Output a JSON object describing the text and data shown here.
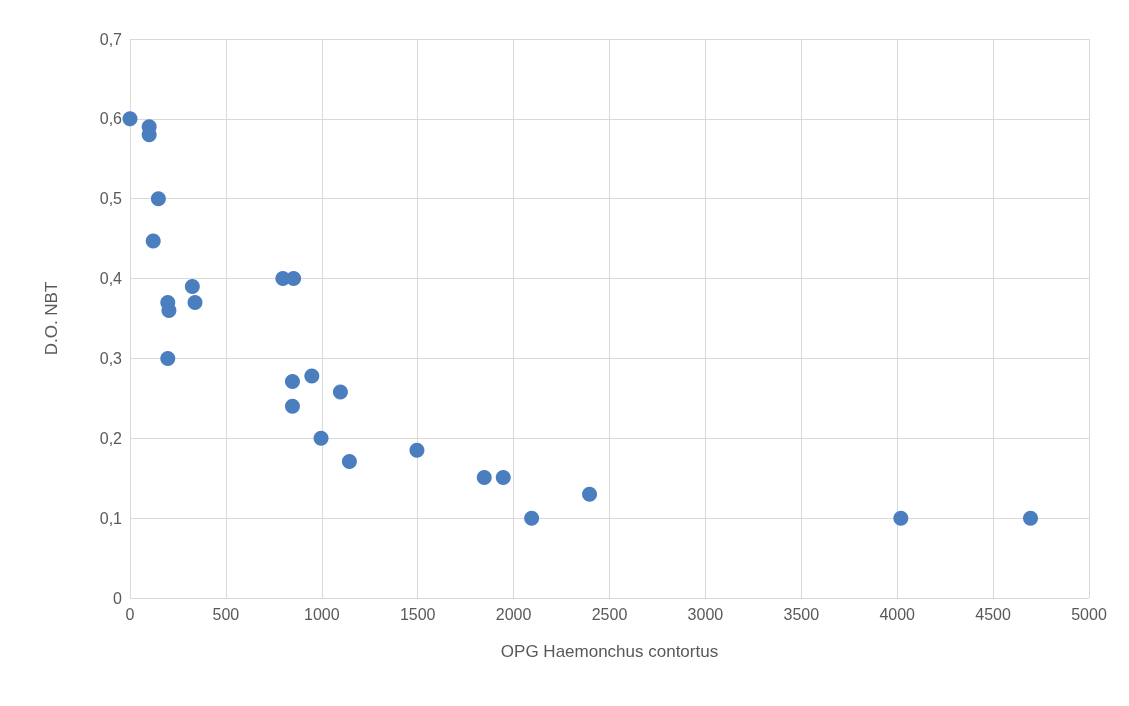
{
  "chart_data": {
    "type": "scatter",
    "xlabel": "OPG Haemonchus contortus",
    "ylabel": "D.O. NBT",
    "x": [
      0,
      100,
      100,
      148,
      121,
      197,
      203,
      197,
      325,
      339,
      797,
      853,
      847,
      948,
      847,
      1097,
      996,
      1144,
      1496,
      1847,
      1946,
      2094,
      2396,
      4019,
      4695
    ],
    "series": [
      {
        "color": "#4a7ebf",
        "values": [
          0.6,
          0.59,
          0.58,
          0.5,
          0.447,
          0.37,
          0.36,
          0.3,
          0.39,
          0.37,
          0.4,
          0.4,
          0.271,
          0.278,
          0.24,
          0.258,
          0.2,
          0.171,
          0.185,
          0.151,
          0.151,
          0.1,
          0.13,
          0.1,
          0.1
        ]
      }
    ],
    "xlim": [
      0,
      5000
    ],
    "xticks": [
      0,
      500,
      1000,
      1500,
      2000,
      2500,
      3000,
      3500,
      4000,
      4500,
      5000
    ],
    "ylim": [
      0,
      0.7
    ],
    "yticks": [
      0,
      {
        "value": 0.1,
        "label": "0,1"
      },
      {
        "value": 0.2,
        "label": "0,2"
      },
      {
        "value": 0.3,
        "label": "0,3"
      },
      {
        "value": 0.4,
        "label": "0,4"
      },
      {
        "value": 0.5,
        "label": "0,5"
      },
      {
        "value": 0.6,
        "label": "0,6"
      },
      {
        "value": 0.7,
        "label": "0,7"
      }
    ],
    "grid": true,
    "marker": "circle"
  }
}
